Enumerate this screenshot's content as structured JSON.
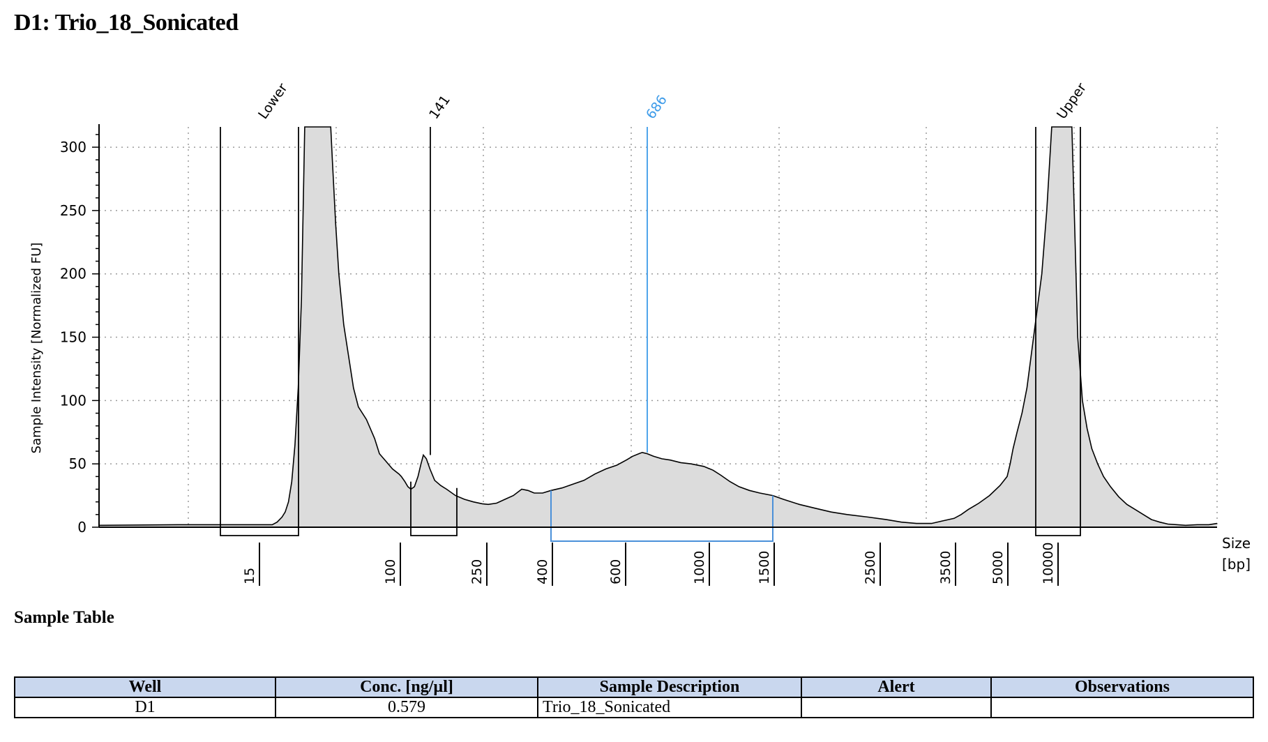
{
  "title": "D1: Trio_18_Sonicated",
  "chart_data": {
    "type": "area",
    "ylabel": "Sample Intensity [Normalized FU]",
    "xlabel": [
      "Size",
      "[bp]"
    ],
    "ylim": [
      0,
      316
    ],
    "yticks": [
      0,
      50,
      100,
      150,
      200,
      250,
      300
    ],
    "grid": true,
    "colors": {
      "fill": "#dcdcdc",
      "line": "#000000",
      "region": "#4a90d9",
      "region_label": "#3d9be9"
    },
    "ladder": [
      15,
      100,
      250,
      400,
      600,
      1000,
      1500,
      2500,
      3500,
      5000,
      10000
    ],
    "peaks": [
      {
        "label": "Lower",
        "size_bp": 15,
        "color": "#000000"
      },
      {
        "label": "141",
        "size_bp": 141,
        "color": "#000000"
      },
      {
        "label": "686",
        "size_bp": 686,
        "color": "#3d9be9"
      },
      {
        "label": "Upper",
        "size_bp": 10000,
        "color": "#000000"
      }
    ],
    "region_bp": [
      400,
      1500
    ],
    "trace": [
      [
        0,
        1.5
      ],
      [
        8,
        2
      ],
      [
        12,
        2
      ],
      [
        18,
        2
      ],
      [
        22,
        2
      ],
      [
        25,
        4
      ],
      [
        28,
        8
      ],
      [
        30,
        12
      ],
      [
        32,
        20
      ],
      [
        34,
        36
      ],
      [
        36,
        65
      ],
      [
        38,
        110
      ],
      [
        40,
        180
      ],
      [
        42,
        316
      ],
      [
        44,
        316
      ],
      [
        48,
        316
      ],
      [
        52,
        316
      ],
      [
        56,
        316
      ],
      [
        58,
        316
      ],
      [
        59,
        290
      ],
      [
        61,
        240
      ],
      [
        63,
        200
      ],
      [
        66,
        160
      ],
      [
        69,
        135
      ],
      [
        72,
        110
      ],
      [
        75,
        95
      ],
      [
        80,
        85
      ],
      [
        85,
        70
      ],
      [
        88,
        58
      ],
      [
        92,
        52
      ],
      [
        96,
        46
      ],
      [
        100,
        42
      ],
      [
        104,
        40
      ],
      [
        110,
        36
      ],
      [
        115,
        32
      ],
      [
        120,
        30
      ],
      [
        126,
        32
      ],
      [
        132,
        40
      ],
      [
        137,
        50
      ],
      [
        141,
        57
      ],
      [
        146,
        54
      ],
      [
        152,
        46
      ],
      [
        160,
        37
      ],
      [
        170,
        33
      ],
      [
        180,
        30
      ],
      [
        195,
        25
      ],
      [
        210,
        22
      ],
      [
        225,
        20
      ],
      [
        240,
        18.5
      ],
      [
        250,
        18
      ],
      [
        270,
        19
      ],
      [
        290,
        22
      ],
      [
        310,
        25
      ],
      [
        330,
        30
      ],
      [
        345,
        29
      ],
      [
        360,
        27
      ],
      [
        380,
        27
      ],
      [
        400,
        29
      ],
      [
        430,
        31
      ],
      [
        460,
        34
      ],
      [
        490,
        37
      ],
      [
        520,
        42
      ],
      [
        550,
        46
      ],
      [
        580,
        49
      ],
      [
        610,
        53
      ],
      [
        640,
        56
      ],
      [
        670,
        58
      ],
      [
        686,
        59
      ],
      [
        710,
        58
      ],
      [
        740,
        56
      ],
      [
        780,
        54
      ],
      [
        820,
        53
      ],
      [
        870,
        51
      ],
      [
        920,
        50
      ],
      [
        980,
        48
      ],
      [
        1040,
        45
      ],
      [
        1100,
        41
      ],
      [
        1170,
        36
      ],
      [
        1240,
        32
      ],
      [
        1320,
        29
      ],
      [
        1400,
        27
      ],
      [
        1500,
        25
      ],
      [
        1600,
        22
      ],
      [
        1750,
        18
      ],
      [
        1900,
        15
      ],
      [
        2050,
        12
      ],
      [
        2200,
        10
      ],
      [
        2400,
        8
      ],
      [
        2600,
        6
      ],
      [
        2800,
        4
      ],
      [
        3000,
        3
      ],
      [
        3200,
        3
      ],
      [
        3350,
        5
      ],
      [
        3500,
        7
      ],
      [
        3700,
        10
      ],
      [
        3900,
        14
      ],
      [
        4200,
        19
      ],
      [
        4500,
        25
      ],
      [
        4800,
        33
      ],
      [
        5000,
        40
      ],
      [
        5300,
        50
      ],
      [
        5600,
        62
      ],
      [
        6000,
        75
      ],
      [
        6500,
        90
      ],
      [
        7000,
        110
      ],
      [
        7500,
        140
      ],
      [
        8000,
        170
      ],
      [
        8500,
        200
      ],
      [
        9000,
        250
      ],
      [
        9500,
        316
      ],
      [
        10000,
        316
      ],
      [
        10500,
        316
      ],
      [
        11000,
        316
      ],
      [
        11300,
        316
      ],
      [
        11500,
        250
      ],
      [
        11800,
        150
      ],
      [
        12200,
        100
      ],
      [
        12600,
        78
      ],
      [
        13000,
        62
      ],
      [
        13500,
        50
      ],
      [
        14000,
        40
      ],
      [
        14600,
        32
      ],
      [
        15300,
        24
      ],
      [
        16000,
        18
      ],
      [
        16700,
        14
      ],
      [
        17400,
        10
      ],
      [
        18100,
        6
      ],
      [
        18800,
        4
      ],
      [
        19500,
        2.5
      ],
      [
        20300,
        2
      ],
      [
        21000,
        1.5
      ],
      [
        22000,
        2
      ],
      [
        23000,
        2
      ],
      [
        23700,
        3
      ]
    ]
  },
  "sample_table": {
    "title": "Sample Table",
    "headers": [
      "Well",
      "Conc. [ng/µl]",
      "Sample Description",
      "Alert",
      "Observations"
    ],
    "rows": [
      [
        "D1",
        "0.579",
        "Trio_18_Sonicated",
        "",
        ""
      ]
    ]
  }
}
